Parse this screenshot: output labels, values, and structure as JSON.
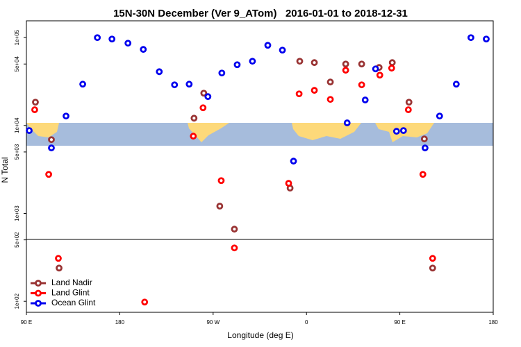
{
  "chart_data": {
    "type": "scatter",
    "title": "15N-30N December (Ver 9_ATom)   2016-01-01 to 2018-12-31",
    "x_label": "Longitude (deg E)",
    "y_label": "N Total",
    "log_y": true,
    "legend": "bottom-left",
    "xlim": [
      90,
      540
    ],
    "ylim": [
      75,
      155000
    ],
    "xticks": [
      {
        "value": 90,
        "label": "90 E"
      },
      180,
      {
        "value": 270,
        "label": "90 W"
      },
      {
        "value": 360,
        "label": "0"
      },
      {
        "value": 450,
        "label": "90 E"
      },
      {
        "value": 540,
        "label": "180"
      }
    ],
    "yticks": [
      {
        "value": 100,
        "label": "1e+02"
      },
      {
        "value": 500,
        "label": "5e+02"
      },
      {
        "value": 1000,
        "label": "1e+03"
      },
      {
        "value": 5000,
        "label": "5e+03"
      },
      {
        "value": 10000,
        "label": "1e+04"
      },
      {
        "value": 50000,
        "label": "5e+04"
      },
      {
        "value": 100000,
        "label": "1e+05"
      }
    ],
    "series": [
      {
        "name": "Land Nadir",
        "color": "#993333",
        "x": [
          98.7,
          114.1,
          121.5,
          251.6,
          261.0,
          276.4,
          290.5,
          344.2,
          353.5,
          367.6,
          383.0,
          397.8,
          413.2,
          430.0,
          442.7,
          458.8,
          473.6,
          481.6
        ],
        "values": [
          18400,
          6900,
          239,
          12100,
          23300,
          1210,
          662,
          1940,
          53800,
          51900,
          31200,
          50000,
          50000,
          45700,
          51900,
          18400,
          7030,
          239
        ]
      },
      {
        "name": "Land Glint",
        "color": "#ff0000",
        "x": [
          98.0,
          111.5,
          120.8,
          204.0,
          250.9,
          260.3,
          277.8,
          290.5,
          342.8,
          352.9,
          367.6,
          383.0,
          397.8,
          413.2,
          430.7,
          442.1,
          458.2,
          472.2,
          481.6
        ],
        "values": [
          15100,
          2780,
          308,
          98,
          7560,
          15900,
          2360,
          405,
          2200,
          22900,
          25100,
          19800,
          42500,
          29000,
          37400,
          44900,
          15100,
          2780,
          308
        ]
      },
      {
        "name": "Ocean Glint",
        "color": "#0000ee",
        "x": [
          92.7,
          114.1,
          128.2,
          144.3,
          158.4,
          172.5,
          187.9,
          202.7,
          218.1,
          232.8,
          246.9,
          265.0,
          278.4,
          293.2,
          307.9,
          322.7,
          336.8,
          347.5,
          399.2,
          416.6,
          426.6,
          446.8,
          453.5,
          474.3,
          488.3,
          504.4,
          518.5,
          533.3
        ],
        "values": [
          8750,
          5550,
          12800,
          29500,
          99800,
          96200,
          86300,
          73300,
          40900,
          29000,
          29500,
          21300,
          39500,
          49100,
          53800,
          81700,
          71900,
          3930,
          10700,
          19500,
          44000,
          8590,
          8750,
          5550,
          12800,
          29500,
          99800,
          96200
        ]
      }
    ]
  }
}
